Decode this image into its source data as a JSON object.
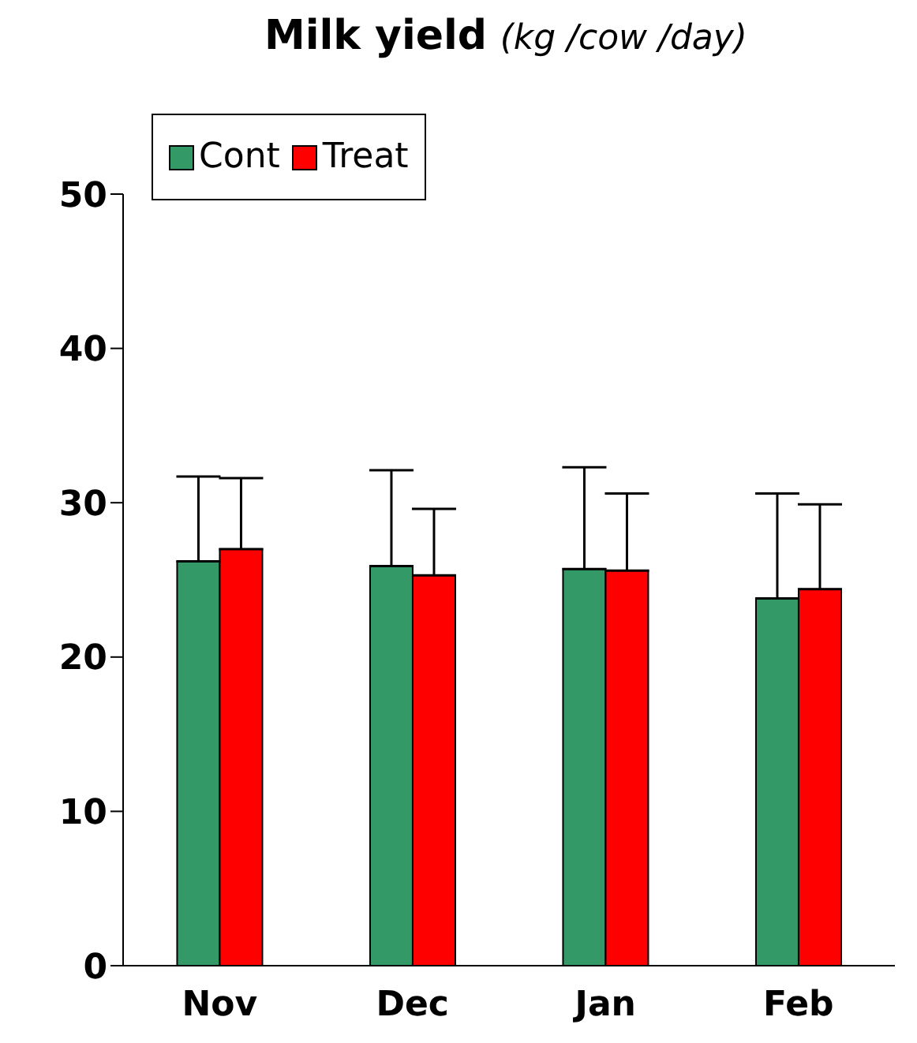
{
  "chart_data": {
    "type": "bar",
    "title": "Milk yield",
    "subtitle": "(kg /cow /day)",
    "categories": [
      "Nov",
      "Dec",
      "Jan",
      "Feb"
    ],
    "series": [
      {
        "name": "Cont",
        "color": "#339966",
        "values": [
          26.2,
          25.9,
          25.7,
          23.8
        ],
        "errors": [
          5.5,
          6.2,
          6.6,
          6.8
        ]
      },
      {
        "name": "Treat",
        "color": "#ff0000",
        "values": [
          27.0,
          25.3,
          25.6,
          24.4
        ],
        "errors": [
          4.6,
          4.3,
          5.0,
          5.5
        ]
      }
    ],
    "ylim": [
      0,
      50
    ],
    "yticks": [
      0,
      10,
      20,
      30,
      40,
      50
    ],
    "grid": false,
    "legend": "top left"
  }
}
